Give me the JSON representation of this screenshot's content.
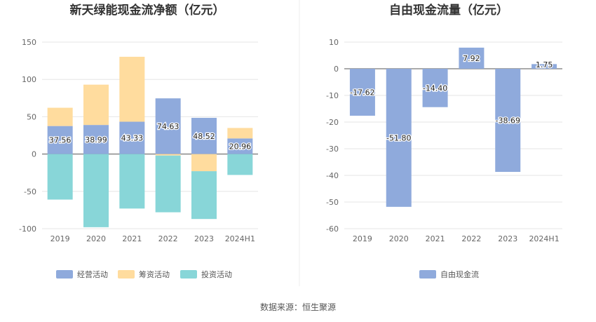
{
  "source_label": "数据来源：恒生聚源",
  "colors": {
    "operating": "#8faadc",
    "financing": "#ffdc9e",
    "investing": "#88d6d8",
    "free_cash_flow": "#8faadc"
  },
  "chart_data": [
    {
      "type": "bar",
      "stacked": true,
      "title": "新天绿能现金流净额（亿元）",
      "categories": [
        "2019",
        "2020",
        "2021",
        "2022",
        "2023",
        "2024H1"
      ],
      "ylim": [
        -100,
        150
      ],
      "yticks": [
        150,
        100,
        50,
        0,
        -50,
        -100
      ],
      "grid": true,
      "legend_position": "bottom",
      "series": [
        {
          "name": "经营活动",
          "color": "#8faadc",
          "values": [
            37.56,
            38.99,
            43.33,
            74.63,
            48.52,
            20.96
          ],
          "labels": [
            "37.56",
            "38.99",
            "43.33",
            "74.63",
            "48.52",
            "20.96"
          ]
        },
        {
          "name": "筹资活动",
          "color": "#ffdc9e",
          "values": [
            24.5,
            54.0,
            87.0,
            -2.0,
            -23.0,
            14.0
          ]
        },
        {
          "name": "投资活动",
          "color": "#88d6d8",
          "values": [
            -61.0,
            -98.0,
            -73.0,
            -76.0,
            -64.0,
            -28.0
          ]
        }
      ]
    },
    {
      "type": "bar",
      "title": "自由现金流量（亿元）",
      "categories": [
        "2019",
        "2020",
        "2021",
        "2022",
        "2023",
        "2024H1"
      ],
      "ylim": [
        -60,
        10
      ],
      "yticks": [
        10,
        0,
        -10,
        -20,
        -30,
        -40,
        -50,
        -60
      ],
      "grid": true,
      "legend_position": "bottom",
      "series": [
        {
          "name": "自由现金流",
          "color": "#8faadc",
          "values": [
            -17.62,
            -51.8,
            -14.4,
            7.92,
            -38.69,
            1.75
          ],
          "labels": [
            "-17.62",
            "-51.80",
            "-14.40",
            "7.92",
            "-38.69",
            "1.75"
          ]
        }
      ]
    }
  ]
}
